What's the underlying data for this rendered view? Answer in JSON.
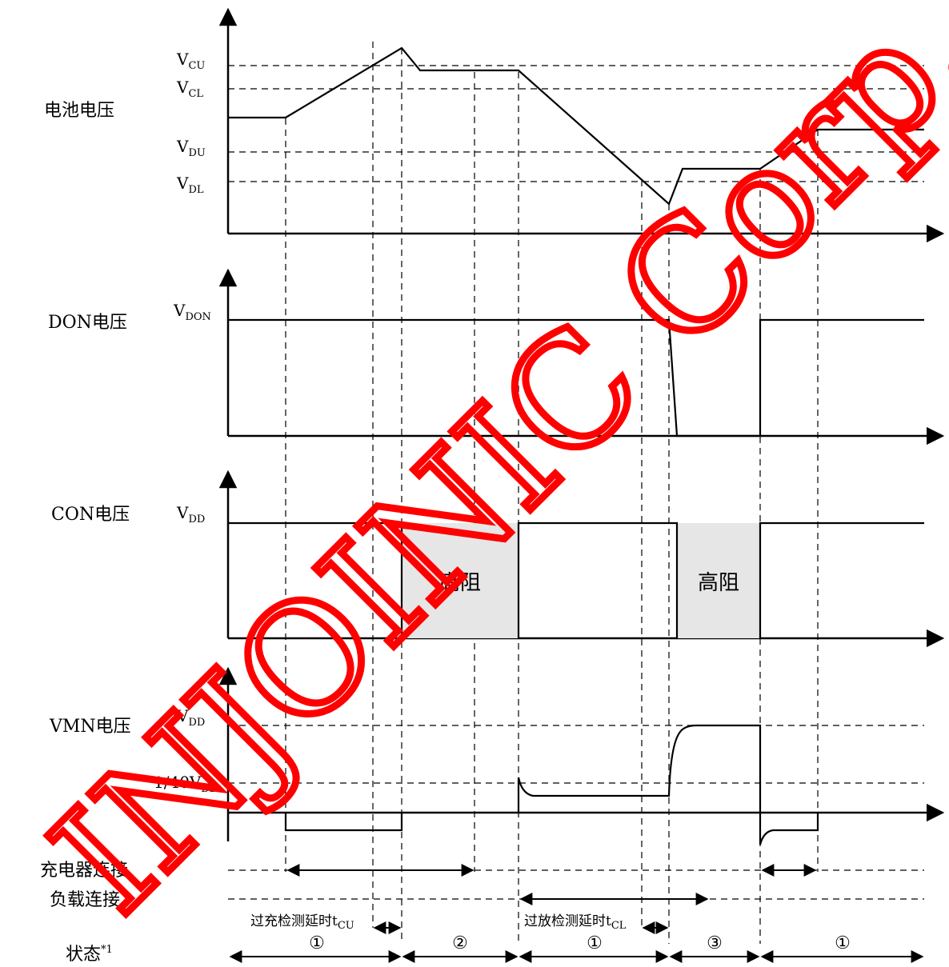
{
  "rows": {
    "battery": "电池电压",
    "don": "DON电压",
    "con": "CON电压",
    "vmn": "VMN电压",
    "charger": "充电器连接",
    "load": "负载连接",
    "state_main": "状态",
    "state_sup": "*1"
  },
  "levels": {
    "vcu": {
      "main": "V",
      "sub": "CU"
    },
    "vcl": {
      "main": "V",
      "sub": "CL"
    },
    "vdu": {
      "main": "V",
      "sub": "DU"
    },
    "vdl": {
      "main": "V",
      "sub": "DL"
    },
    "vdon": {
      "main": "V",
      "sub": "DON"
    },
    "vdd_con": {
      "main": "V",
      "sub": "DD"
    },
    "vdd_vmn": {
      "main": "V",
      "sub": "DD"
    },
    "vdd40": {
      "main": "1/40V",
      "sub": "DD"
    }
  },
  "hiz": [
    "高阻",
    "高阻"
  ],
  "delays": {
    "overcharge": {
      "main": "过充检测延时t",
      "sub": "CU"
    },
    "overdischarge": {
      "main": "过放检测延时t",
      "sub": "CL"
    }
  },
  "states": [
    "①",
    "②",
    "①",
    "③",
    "①"
  ],
  "watermark": "INJOINIC Corp."
}
